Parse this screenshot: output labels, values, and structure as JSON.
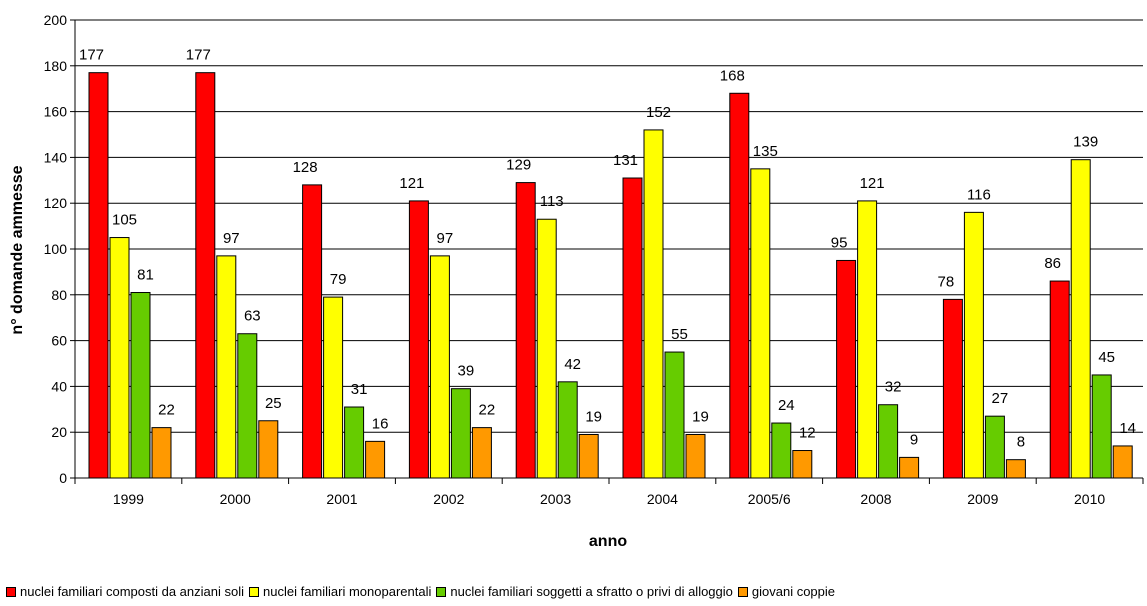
{
  "chart_data": {
    "type": "bar",
    "title": "",
    "xlabel": "anno",
    "ylabel": "n° domande ammesse",
    "ylim": [
      0,
      200
    ],
    "yticks": [
      0,
      20,
      40,
      60,
      80,
      100,
      120,
      140,
      160,
      180,
      200
    ],
    "grid": true,
    "legend_position": "bottom",
    "categories": [
      "1999",
      "2000",
      "2001",
      "2002",
      "2003",
      "2004",
      "2005/6",
      "2008",
      "2009",
      "2010"
    ],
    "series": [
      {
        "name": "nuclei familiari composti da anziani soli",
        "color": "#ff0000",
        "values": [
          177,
          177,
          128,
          121,
          129,
          131,
          168,
          95,
          78,
          86
        ]
      },
      {
        "name": "nuclei familiari monoparentali",
        "color": "#ffff00",
        "values": [
          105,
          97,
          79,
          97,
          113,
          152,
          135,
          121,
          116,
          139
        ]
      },
      {
        "name": "nuclei familiari soggetti a sfratto o privi di alloggio",
        "color": "#66cc00",
        "values": [
          81,
          63,
          31,
          39,
          42,
          55,
          24,
          32,
          27,
          45
        ]
      },
      {
        "name": "giovani coppie",
        "color": "#ff9900",
        "values": [
          22,
          25,
          16,
          22,
          19,
          19,
          12,
          9,
          8,
          14
        ]
      }
    ]
  }
}
